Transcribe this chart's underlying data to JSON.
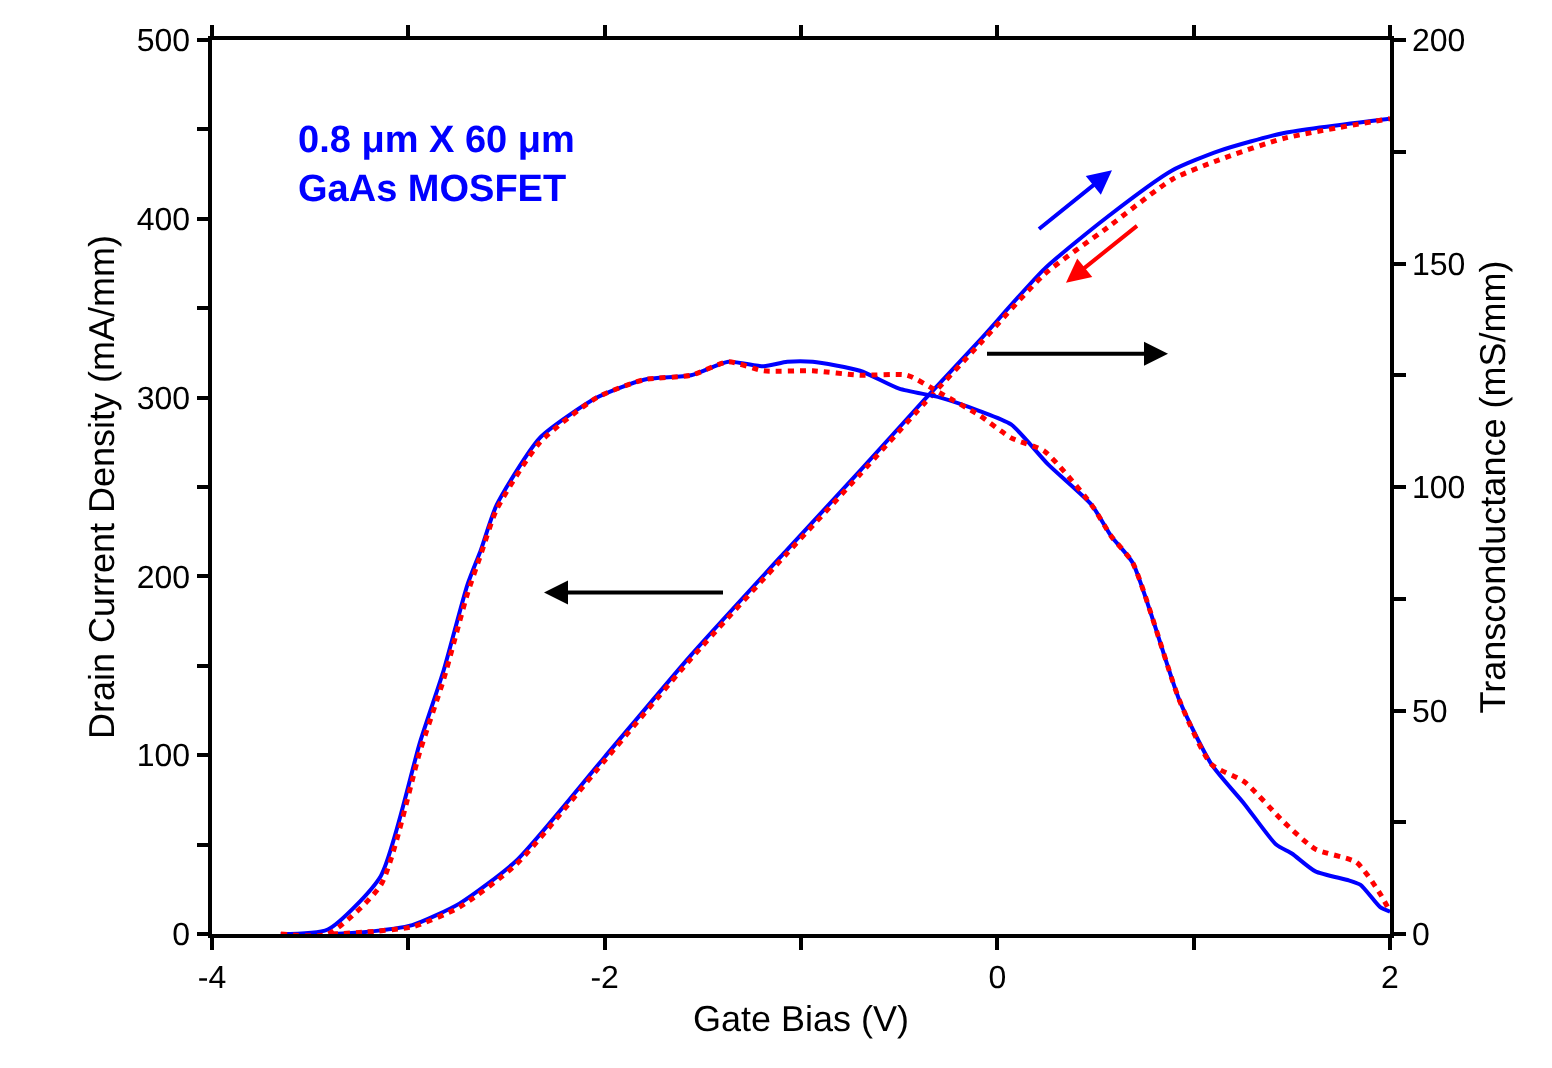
{
  "chart_data": {
    "type": "line",
    "xlabel": "Gate Bias (V)",
    "ylabel": "Drain Current Density (mA/mm)",
    "y2label": "Transconductance (mS/mm)",
    "annotations": [
      "0.8 μm X 60 μm\nGaAs MOSFET"
    ],
    "xlim": [
      -4,
      2
    ],
    "xticks": [
      -4,
      {
        "value": -3,
        "label": null
      },
      -2,
      {
        "value": -1,
        "label": null
      },
      0,
      {
        "value": 1,
        "label": null
      },
      2
    ],
    "ylim": [
      0,
      500
    ],
    "yticks": [
      0,
      {
        "value": 50,
        "label": null
      },
      100,
      {
        "value": 150,
        "label": null
      },
      200,
      {
        "value": 250,
        "label": null
      },
      300,
      {
        "value": 350,
        "label": null
      },
      400,
      {
        "value": 450,
        "label": null
      },
      500
    ],
    "y2lim": [
      0,
      200
    ],
    "y2ticks": [
      0,
      {
        "value": 25,
        "label": null
      },
      50,
      {
        "value": 75,
        "label": null
      },
      100,
      {
        "value": 125,
        "label": null
      },
      150,
      {
        "value": 175,
        "label": null
      },
      200
    ],
    "legend": false,
    "marker": "none",
    "series": [
      {
        "color": "#0000ff",
        "line_style": "solid",
        "x": [
          -3.39,
          -3.23,
          -2.98,
          -2.74,
          -2.45,
          -2.0,
          -1.56,
          -1.07,
          -0.7,
          -0.37,
          -0.09,
          0.24,
          0.56,
          0.89,
          1.13,
          1.46,
          2.0
        ],
        "values": [
          0,
          1,
          5,
          17,
          41,
          99,
          156,
          215,
          259,
          299,
          332,
          372,
          401,
          427,
          438,
          448,
          456
        ]
      },
      {
        "color": "#ff0000",
        "line_style": "dotted",
        "x": [
          -3.39,
          -3.23,
          -2.98,
          -2.74,
          -2.45,
          -2.0,
          -1.56,
          -1.07,
          -0.7,
          -0.37,
          -0.09,
          0.24,
          0.56,
          0.89,
          1.13,
          1.46,
          2.0
        ],
        "values": [
          0,
          1,
          4,
          15,
          39,
          97,
          154,
          213,
          257,
          297,
          330,
          369,
          395,
          422,
          433,
          445,
          456
        ]
      },
      {
        "color": "#0000ff",
        "line_style": "solid",
        "axis": "y2",
        "x": [
          -3.65,
          -3.41,
          -3.14,
          -2.94,
          -2.82,
          -2.7,
          -2.63,
          -2.55,
          -2.33,
          -2.04,
          -1.8,
          -1.56,
          -1.37,
          -1.19,
          -1.07,
          -0.94,
          -0.7,
          -0.5,
          -0.29,
          -0.09,
          0.07,
          0.26,
          0.48,
          0.58,
          0.69,
          0.93,
          1.09,
          1.26,
          1.42,
          1.5,
          1.62,
          1.79,
          1.85,
          1.95,
          2.0
        ],
        "values": [
          0,
          1,
          13,
          43,
          59,
          78,
          86,
          96,
          111,
          120,
          124,
          125,
          128,
          127,
          128,
          128,
          126,
          122,
          120,
          117,
          114,
          105,
          96,
          89,
          83,
          52,
          38,
          29,
          20,
          18,
          14,
          12,
          11,
          6,
          5
        ]
      },
      {
        "color": "#ff0000",
        "line_style": "dotted",
        "axis": "y2",
        "x": [
          -3.65,
          -3.41,
          -3.14,
          -2.94,
          -2.82,
          -2.7,
          -2.63,
          -2.55,
          -2.33,
          -2.04,
          -1.8,
          -1.56,
          -1.37,
          -1.19,
          -0.94,
          -0.7,
          -0.46,
          -0.29,
          -0.09,
          0.07,
          0.24,
          0.48,
          0.58,
          0.69,
          0.93,
          1.09,
          1.26,
          1.46,
          1.62,
          1.83,
          1.95,
          2.0
        ],
        "values": [
          0,
          0,
          11,
          41,
          57,
          76,
          85,
          95,
          110,
          120,
          124,
          125,
          128,
          126,
          126,
          125,
          125,
          121,
          116,
          111,
          108,
          96,
          89,
          83,
          52,
          38,
          34,
          25,
          19,
          16,
          9,
          5
        ]
      }
    ]
  }
}
